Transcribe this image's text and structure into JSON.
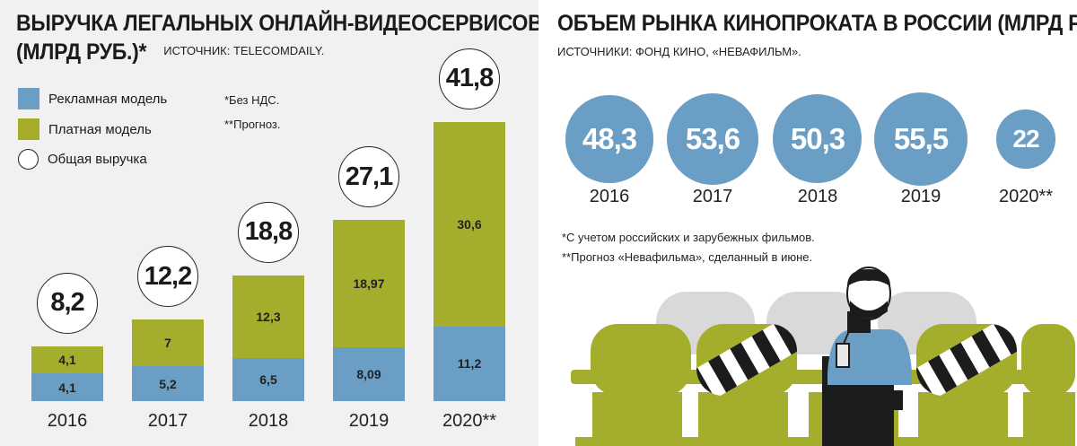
{
  "colors": {
    "ad": "#6b9ec4",
    "paid": "#a5ad2c",
    "total_fill": "#ffffff",
    "box_circle": "#6b9ec4",
    "seat": "#a5ad2c",
    "seat_back": "#d6d6d6"
  },
  "left": {
    "title_line1": "ВЫРУЧКА ЛЕГАЛЬНЫХ ОНЛАЙН-ВИДЕОСЕРВИСОВ",
    "title_line2": "(МЛРД РУБ.)*",
    "source": "ИСТОЧНИК: TELECOMDAILY.",
    "legend": {
      "ad": "Рекламная модель",
      "paid": "Платная модель",
      "total": "Общая выручка"
    },
    "notes": {
      "vat": "*Без НДС.",
      "forecast": "**Прогноз."
    }
  },
  "right": {
    "title": "ОБЪЕМ РЫНКА КИНОПРОКАТА В РОССИИ (МЛРД РУБ.)*",
    "source": "ИСТОЧНИКИ: ФОНД КИНО, «НЕВАФИЛЬМ».",
    "note1": "*С учетом российских и зарубежных фильмов.",
    "note2": "**Прогноз «Невафильма», сделанный в июне."
  },
  "chart_data": [
    {
      "type": "bar",
      "stacked": true,
      "title": "ВЫРУЧКА ЛЕГАЛЬНЫХ ОНЛАЙН-ВИДЕОСЕРВИСОВ (МЛРД РУБ.)*",
      "categories": [
        "2016",
        "2017",
        "2018",
        "2019",
        "2020**"
      ],
      "series": [
        {
          "name": "Рекламная модель",
          "values": [
            4.1,
            5.2,
            6.5,
            8.09,
            11.2
          ],
          "labels": [
            "4,1",
            "5,2",
            "6,5",
            "8,09",
            "11,2"
          ]
        },
        {
          "name": "Платная модель",
          "values": [
            4.1,
            7,
            12.3,
            18.97,
            30.6
          ],
          "labels": [
            "4,1",
            "7",
            "12,3",
            "18,97",
            "30,6"
          ]
        }
      ],
      "totals": {
        "name": "Общая выручка",
        "values": [
          8.2,
          12.2,
          18.8,
          27.1,
          41.8
        ],
        "labels": [
          "8,2",
          "12,2",
          "18,8",
          "27,1",
          "41,8"
        ]
      },
      "legend": "top-left",
      "grid": false
    },
    {
      "type": "bubble",
      "title": "ОБЪЕМ РЫНКА КИНОПРОКАТА В РОССИИ (МЛРД РУБ.)*",
      "categories": [
        "2016",
        "2017",
        "2018",
        "2019",
        "2020**"
      ],
      "values": [
        48.3,
        53.6,
        50.3,
        55.5,
        22
      ],
      "labels": [
        "48,3",
        "53,6",
        "50,3",
        "55,5",
        "22"
      ]
    }
  ]
}
